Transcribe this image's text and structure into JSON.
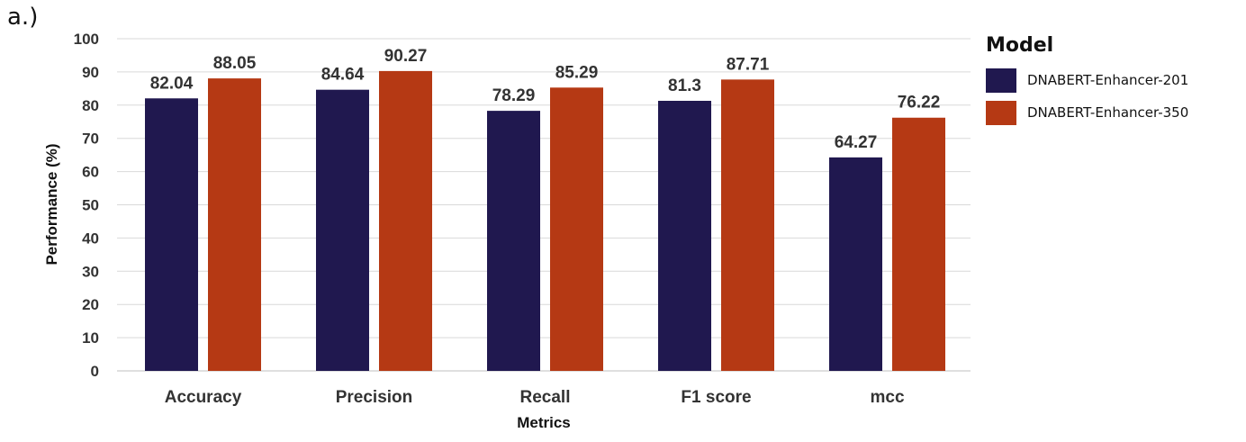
{
  "panel_label": "a.)",
  "chart_data": {
    "type": "bar",
    "title": "",
    "xlabel": "Metrics",
    "ylabel": "Performance (%)",
    "ylim": [
      0,
      100
    ],
    "yticks": [
      0,
      10,
      20,
      30,
      40,
      50,
      60,
      70,
      80,
      90,
      100
    ],
    "categories": [
      "Accuracy",
      "Precision",
      "Recall",
      "F1 score",
      "mcc"
    ],
    "legend_title": "Model",
    "legend_position": "right",
    "grid": true,
    "series": [
      {
        "name": "DNABERT-Enhancer-201",
        "color": "#20184f",
        "values": [
          82.04,
          84.64,
          78.29,
          81.3,
          64.27
        ],
        "labels": [
          "82.04",
          "84.64",
          "78.29",
          "81.3",
          "64.27"
        ]
      },
      {
        "name": "DNABERT-Enhancer-350",
        "color": "#b53914",
        "values": [
          88.05,
          90.27,
          85.29,
          87.71,
          76.22
        ],
        "labels": [
          "88.05",
          "90.27",
          "85.29",
          "87.71",
          "76.22"
        ]
      }
    ]
  }
}
